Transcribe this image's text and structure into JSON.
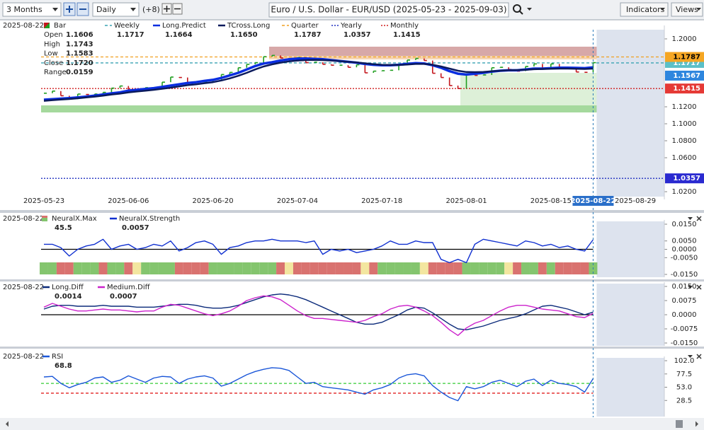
{
  "toolbar": {
    "range": "3 Months",
    "interval": "Daily",
    "offset": "(+8)",
    "title": "Euro / U.S. Dollar - EUR/USD (2025-05-23 - 2025-09-03)",
    "indicators": "Indicators",
    "views": "Views"
  },
  "chart_data": [
    {
      "type": "ohlc",
      "date_label": "2025-08-22",
      "categories": [
        "2025-05-23",
        null,
        null,
        null,
        null,
        null,
        null,
        null,
        null,
        null,
        "2025-06-06",
        null,
        null,
        null,
        null,
        null,
        null,
        null,
        null,
        null,
        "2025-06-20",
        null,
        null,
        null,
        null,
        null,
        null,
        null,
        null,
        null,
        "2025-07-04",
        null,
        null,
        null,
        null,
        null,
        null,
        null,
        null,
        null,
        "2025-07-18",
        null,
        null,
        null,
        null,
        null,
        null,
        null,
        null,
        null,
        "2025-08-01",
        null,
        null,
        null,
        null,
        null,
        null,
        null,
        null,
        null,
        "2025-08-15",
        null,
        null,
        null,
        null,
        "2025-08-22",
        null,
        null,
        null,
        null,
        "2025-08-29"
      ],
      "bar": {
        "name": "Bar",
        "up_color": "#1f9e1f",
        "down_color": "#c4161c",
        "fields": [
          {
            "label": "Open",
            "value": 1.1606
          },
          {
            "label": "High",
            "value": 1.1743
          },
          {
            "label": "Low",
            "value": 1.1583
          },
          {
            "label": "Close",
            "value": {
              "value": 1.172,
              "label": "1.1720"
            }
          },
          {
            "label": "Range",
            "value": 0.0159
          }
        ],
        "closes": [
          1.136,
          1.1385,
          1.133,
          1.129,
          1.135,
          1.1345,
          1.135,
          1.137,
          1.142,
          1.1445,
          1.14,
          1.1395,
          1.1425,
          1.142,
          1.149,
          1.155,
          1.1545,
          1.148,
          1.149,
          1.1495,
          1.152,
          1.158,
          1.1605,
          1.166,
          1.17,
          1.172,
          1.179,
          1.1805,
          1.1775,
          1.176,
          1.178,
          1.172,
          1.1725,
          1.17,
          1.169,
          1.169,
          1.1665,
          1.1695,
          1.16,
          1.162,
          1.1625,
          1.163,
          1.169,
          1.175,
          1.177,
          1.1745,
          1.1595,
          1.1545,
          1.145,
          1.1415,
          1.159,
          1.157,
          1.1575,
          1.166,
          1.1665,
          1.164,
          1.162,
          1.1675,
          1.1705,
          1.165,
          1.1705,
          1.1665,
          1.165,
          1.161,
          1.1606,
          1.172,
          null,
          null,
          null,
          null,
          null
        ]
      },
      "series": [
        {
          "name": "Weekly",
          "style": "dashed",
          "color": "#3aa3b3",
          "value": 1.1717
        },
        {
          "name": "Long.Predict",
          "style": "line",
          "color": "#0a2ee0",
          "value": 1.1664,
          "values": [
            1.1283,
            1.129,
            1.1296,
            1.1302,
            1.131,
            1.132,
            1.1332,
            1.1345,
            1.1358,
            1.137,
            1.139,
            1.14,
            1.141,
            1.142,
            1.1435,
            1.145,
            1.1465,
            1.148,
            1.149,
            1.1505,
            1.1517,
            1.154,
            1.157,
            1.16,
            1.164,
            1.168,
            1.171,
            1.1725,
            1.1745,
            1.176,
            1.1767,
            1.1768,
            1.1765,
            1.176,
            1.175,
            1.174,
            1.173,
            1.172,
            1.1705,
            1.1695,
            1.169,
            1.169,
            1.1695,
            1.1705,
            1.1715,
            1.171,
            1.169,
            1.166,
            1.162,
            1.159,
            1.158,
            1.159,
            1.16,
            1.1615,
            1.1625,
            1.163,
            1.163,
            1.164,
            1.165,
            1.165,
            1.1655,
            1.166,
            1.166,
            1.1658,
            1.1655,
            1.1664,
            null,
            null,
            null,
            null,
            null
          ]
        },
        {
          "name": "TCross.Long",
          "style": "line",
          "color": "#0b1a5c",
          "value": {
            "value": 1.165,
            "label": "1.1650"
          },
          "values": [
            1.127,
            1.1278,
            1.1285,
            1.1292,
            1.13,
            1.131,
            1.132,
            1.1332,
            1.1345,
            1.1355,
            1.137,
            1.138,
            1.139,
            1.14,
            1.1412,
            1.1425,
            1.144,
            1.1455,
            1.1465,
            1.1478,
            1.149,
            1.151,
            1.1535,
            1.1565,
            1.16,
            1.164,
            1.1675,
            1.17,
            1.172,
            1.1735,
            1.1745,
            1.175,
            1.1752,
            1.175,
            1.1745,
            1.1738,
            1.173,
            1.1722,
            1.1712,
            1.1702,
            1.1695,
            1.1692,
            1.1692,
            1.1698,
            1.1705,
            1.1705,
            1.1695,
            1.1675,
            1.165,
            1.1625,
            1.161,
            1.1608,
            1.161,
            1.1618,
            1.1625,
            1.163,
            1.1632,
            1.1636,
            1.1642,
            1.1645,
            1.1648,
            1.165,
            1.165,
            1.1648,
            1.1646,
            1.165,
            null,
            null,
            null,
            null,
            null
          ]
        },
        {
          "name": "Quarter",
          "style": "dashed",
          "color": "#f0a020",
          "value": 1.1787
        },
        {
          "name": "Yearly",
          "style": "dotted",
          "color": "#2030c0",
          "value": 1.0357
        },
        {
          "name": "Monthly",
          "style": "dotted",
          "color": "#d02020",
          "value": 1.1415
        }
      ],
      "markers": [
        {
          "value": 1.1717,
          "color": "#5bc0c8"
        },
        {
          "value": 1.1787,
          "color": "#f5a623"
        },
        {
          "value": 1.1567,
          "color": "#2e86de"
        },
        {
          "value": 1.1415,
          "color": "#e53935"
        },
        {
          "value": 1.0357,
          "color": "#2a2ad0"
        }
      ],
      "ylim": [
        1.0142,
        1.2108
      ],
      "yticks": [
        {
          "value": 1.2,
          "label": "1.2000"
        },
        {
          "value": 1.12,
          "label": "1.1200"
        },
        {
          "value": 1.1,
          "label": "1.1000"
        },
        {
          "value": 1.08,
          "label": "1.0800"
        },
        {
          "value": 1.06,
          "label": "1.0600"
        },
        {
          "value": 1.02,
          "label": "1.0200"
        }
      ]
    },
    {
      "type": "line",
      "date_label": "2025-08-22",
      "zero_line": true,
      "series": [
        {
          "name": "NeuralX.Max",
          "style": "strip",
          "value": 45.5,
          "colors": [
            "#84c56e",
            "#84c56e",
            "#d9726f",
            "#d9726f",
            "#84c56e",
            "#84c56e",
            "#84c56e",
            "#d9726f",
            "#84c56e",
            "#84c56e",
            "#d9726f",
            "#f3e6a0",
            "#84c56e",
            "#84c56e",
            "#84c56e",
            "#84c56e",
            "#d9726f",
            "#d9726f",
            "#d9726f",
            "#d9726f",
            "#84c56e",
            "#84c56e",
            "#84c56e",
            "#84c56e",
            "#84c56e",
            "#84c56e",
            "#84c56e",
            "#84c56e",
            "#d9726f",
            "#f3e6a0",
            "#d9726f",
            "#d9726f",
            "#d9726f",
            "#d9726f",
            "#d9726f",
            "#d9726f",
            "#d9726f",
            "#d9726f",
            "#f3e6a0",
            "#d9726f",
            "#84c56e",
            "#84c56e",
            "#84c56e",
            "#84c56e",
            "#84c56e",
            "#f3e6a0",
            "#d9726f",
            "#d9726f",
            "#d9726f",
            "#d9726f",
            "#84c56e",
            "#84c56e",
            "#84c56e",
            "#84c56e",
            "#84c56e",
            "#f3e6a0",
            "#d9726f",
            "#84c56e",
            "#84c56e",
            "#d9726f",
            "#84c56e",
            "#d9726f",
            "#d9726f",
            "#d9726f",
            "#d9726f",
            "#84c56e",
            null,
            null,
            null,
            null,
            null
          ]
        },
        {
          "name": "NeuralX.Strength",
          "style": "line",
          "color": "#1030d0",
          "value": 0.0057,
          "values": [
            0.003,
            0.003,
            0.001,
            -0.004,
            0,
            0.002,
            0.003,
            0.006,
            0,
            0.002,
            0.003,
            0,
            0.001,
            0.003,
            0.002,
            0.005,
            -0.001,
            0.001,
            0.004,
            0.005,
            0.003,
            -0.003,
            0.001,
            0.002,
            0.004,
            0.005,
            0.005,
            0.006,
            0.005,
            0.005,
            0.005,
            0.004,
            0.005,
            -0.003,
            0,
            -0.001,
            0,
            -0.002,
            -0.001,
            0,
            0.002,
            0.005,
            0.003,
            0.003,
            0.005,
            0.004,
            0.004,
            -0.006,
            -0.008,
            -0.006,
            -0.008,
            0.003,
            0.006,
            0.005,
            0.004,
            0.003,
            0.002,
            0.005,
            0.004,
            0.002,
            0.003,
            0.001,
            0.002,
            0,
            -0.001,
            0.0057,
            null,
            null,
            null,
            null,
            null
          ]
        }
      ],
      "ylim": [
        -0.015,
        0.015
      ],
      "yticks": [
        {
          "value": 0.015,
          "label": "0.0150"
        },
        {
          "value": 0.005,
          "label": "0.0050"
        },
        {
          "value": 0,
          "label": "0.0000"
        },
        {
          "value": -0.005,
          "label": "-0.0050"
        },
        {
          "value": -0.015,
          "label": "-0.0150"
        }
      ]
    },
    {
      "type": "line",
      "date_label": "2025-08-22",
      "zero_line": true,
      "series": [
        {
          "name": "Long.Diff",
          "style": "line",
          "color": "#0b2a7a",
          "value": 0.0014,
          "values": [
            0.003,
            0.0045,
            0.005,
            0.005,
            0.0045,
            0.0045,
            0.0045,
            0.005,
            0.0045,
            0.0045,
            0.0045,
            0.004,
            0.004,
            0.004,
            0.0045,
            0.005,
            0.0055,
            0.0055,
            0.005,
            0.004,
            0.0035,
            0.0035,
            0.004,
            0.005,
            0.0065,
            0.008,
            0.0095,
            0.0105,
            0.011,
            0.0105,
            0.0095,
            0.008,
            0.006,
            0.004,
            0.002,
            0,
            -0.002,
            -0.004,
            -0.005,
            -0.005,
            -0.004,
            -0.002,
            0,
            0.0025,
            0.004,
            0.0035,
            0.001,
            -0.002,
            -0.005,
            -0.0075,
            -0.008,
            -0.007,
            -0.006,
            -0.0045,
            -0.003,
            -0.002,
            -0.001,
            0.0005,
            0.0025,
            0.0045,
            0.005,
            0.004,
            0.003,
            0.0015,
            0,
            0.0014,
            null,
            null,
            null,
            null,
            null
          ]
        },
        {
          "name": "Medium.Diff",
          "style": "line",
          "color": "#cc22cc",
          "value": 0.0007,
          "values": [
            0.004,
            0.006,
            0.0045,
            0.003,
            0.002,
            0.002,
            0.0025,
            0.003,
            0.0025,
            0.0025,
            0.002,
            0.0015,
            0.002,
            0.002,
            0.004,
            0.0055,
            0.005,
            0.0035,
            0.002,
            0.0005,
            -0.0005,
            0.0005,
            0.002,
            0.0045,
            0.0075,
            0.009,
            0.01,
            0.0095,
            0.008,
            0.005,
            0.002,
            -0.0005,
            -0.002,
            -0.002,
            -0.0025,
            -0.003,
            -0.0035,
            -0.004,
            -0.003,
            -0.001,
            0.0005,
            0.003,
            0.0045,
            0.005,
            0.004,
            0.002,
            -0.0005,
            -0.004,
            -0.008,
            -0.011,
            -0.007,
            -0.0045,
            -0.003,
            -0.0005,
            0.002,
            0.004,
            0.005,
            0.005,
            0.004,
            0.003,
            0.0025,
            0.002,
            0.0005,
            -0.001,
            -0.0015,
            0.0007,
            null,
            null,
            null,
            null,
            null
          ]
        }
      ],
      "ylim": [
        -0.015,
        0.015
      ],
      "yticks": [
        {
          "value": 0.015,
          "label": "0.0150"
        },
        0.0075,
        {
          "value": 0,
          "label": "0.0000"
        },
        -0.0075,
        {
          "value": -0.015,
          "label": "-0.0150"
        }
      ]
    },
    {
      "type": "line",
      "date_label": "2025-08-22",
      "series": [
        {
          "name": "RSI",
          "style": "line",
          "color": "#1a56d8",
          "value": 68.8,
          "values": [
            72,
            73,
            60,
            52,
            58,
            62,
            70,
            72,
            62,
            66,
            74,
            68,
            62,
            70,
            73,
            72,
            60,
            68,
            72,
            74,
            70,
            55,
            60,
            68,
            76,
            82,
            86,
            89,
            88,
            84,
            72,
            60,
            62,
            54,
            52,
            50,
            48,
            44,
            40,
            48,
            52,
            58,
            70,
            76,
            78,
            74,
            56,
            44,
            34,
            28,
            54,
            50,
            54,
            62,
            66,
            60,
            54,
            64,
            68,
            56,
            66,
            60,
            58,
            54,
            44,
            68.8,
            null,
            null,
            null,
            null,
            null
          ]
        }
      ],
      "levels": [
        {
          "value": 60,
          "color": "#33cc33"
        },
        {
          "value": 42,
          "color": "#e02020"
        }
      ],
      "ylim": [
        4,
        102
      ],
      "yticks": [
        {
          "value": 102,
          "label": "102.0"
        },
        77.5,
        {
          "value": 53,
          "label": "53.0"
        },
        28.5
      ]
    }
  ]
}
